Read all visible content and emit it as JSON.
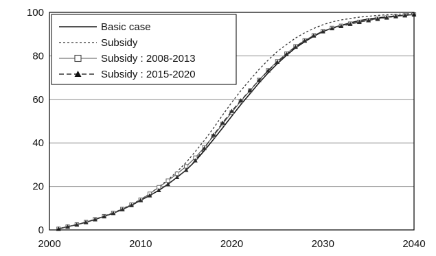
{
  "chart_data": {
    "type": "line",
    "title": "",
    "xlabel": "",
    "ylabel": "",
    "xlim": [
      2000,
      2040
    ],
    "ylim": [
      0,
      100
    ],
    "x_ticks": [
      2000,
      2010,
      2020,
      2030,
      2040
    ],
    "y_ticks": [
      0,
      20,
      40,
      60,
      80,
      100
    ],
    "x_tick_labels": [
      "2000",
      "2010",
      "2020",
      "2030",
      "2040"
    ],
    "y_tick_labels": [
      "0",
      "20",
      "40",
      "60",
      "80",
      "100"
    ],
    "grid": "horizontal",
    "legend_position": "top-left",
    "x": [
      2001,
      2002,
      2003,
      2004,
      2005,
      2006,
      2007,
      2008,
      2009,
      2010,
      2011,
      2012,
      2013,
      2014,
      2015,
      2016,
      2017,
      2018,
      2019,
      2020,
      2021,
      2022,
      2023,
      2024,
      2025,
      2026,
      2027,
      2028,
      2029,
      2030,
      2031,
      2032,
      2033,
      2034,
      2035,
      2036,
      2037,
      2038,
      2039,
      2040
    ],
    "series": [
      {
        "name": "Basic case",
        "style": "solid",
        "marker": "none",
        "values": [
          0.5,
          1.5,
          2.4,
          3.5,
          4.8,
          6.2,
          7.7,
          9.4,
          11.3,
          13.6,
          15.8,
          18.2,
          21.0,
          24.2,
          27.5,
          31.6,
          36.5,
          41.6,
          46.9,
          52.3,
          57.6,
          62.6,
          67.6,
          72.2,
          76.4,
          80.2,
          83.7,
          86.5,
          89.0,
          91.2,
          92.8,
          94.0,
          95.2,
          96.2,
          96.9,
          97.5,
          97.9,
          98.4,
          98.7,
          99.0
        ]
      },
      {
        "name": "Subsidy",
        "style": "dotted",
        "marker": "none",
        "values": [
          0.5,
          1.5,
          2.5,
          3.6,
          4.9,
          6.4,
          7.9,
          9.7,
          11.7,
          14.0,
          16.6,
          19.8,
          23.0,
          26.8,
          31.0,
          36.0,
          41.2,
          46.8,
          52.8,
          58.6,
          64.0,
          69.0,
          73.8,
          78.1,
          82.0,
          85.2,
          88.2,
          90.6,
          92.6,
          94.3,
          95.6,
          96.5,
          97.2,
          97.8,
          98.2,
          98.6,
          98.9,
          99.1,
          99.3,
          99.5
        ]
      },
      {
        "name": "Subsidy : 2008-2013",
        "style": "solid-thin",
        "marker": "open-square",
        "values": [
          0.5,
          1.5,
          2.5,
          3.6,
          4.9,
          6.3,
          7.8,
          9.6,
          11.6,
          13.9,
          16.6,
          19.6,
          22.6,
          25.8,
          29.2,
          33.2,
          38.0,
          43.2,
          48.7,
          54.0,
          59.2,
          64.0,
          68.9,
          73.4,
          77.5,
          81.0,
          84.4,
          87.1,
          89.4,
          91.4,
          92.8,
          93.8,
          94.8,
          95.6,
          96.4,
          97.0,
          97.6,
          98.2,
          98.6,
          99.0
        ]
      },
      {
        "name": "Subsidy : 2015-2020",
        "style": "dashed",
        "marker": "filled-triangle",
        "values": [
          0.5,
          1.5,
          2.4,
          3.5,
          4.8,
          6.2,
          7.7,
          9.4,
          11.3,
          13.6,
          15.8,
          18.2,
          21.0,
          24.2,
          27.5,
          31.9,
          37.6,
          43.6,
          49.2,
          54.6,
          59.5,
          64.2,
          68.8,
          73.2,
          77.2,
          80.8,
          84.1,
          86.9,
          89.3,
          91.2,
          92.6,
          93.6,
          94.6,
          95.5,
          96.3,
          97.0,
          97.6,
          98.2,
          98.6,
          99.0
        ]
      }
    ]
  }
}
